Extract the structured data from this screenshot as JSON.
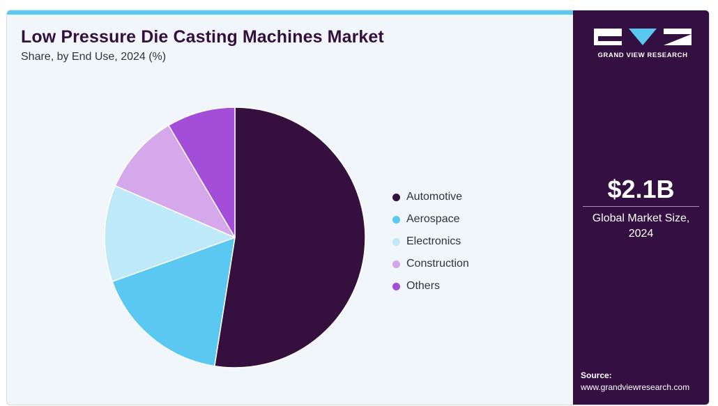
{
  "header": {
    "title": "Low Pressure Die Casting Machines Market",
    "subtitle": "Share, by End Use, 2024 (%)"
  },
  "chart_data": {
    "type": "pie",
    "title": "Low Pressure Die Casting Machines Market",
    "subtitle": "Share, by End Use, 2024 (%)",
    "categories": [
      "Automotive",
      "Aerospace",
      "Electronics",
      "Construction",
      "Others"
    ],
    "values": [
      52.5,
      17.0,
      12.0,
      10.0,
      8.5
    ],
    "colors": [
      "#35103f",
      "#5ac8f0",
      "#bde9f8",
      "#d4a8ea",
      "#a24ed8"
    ],
    "legend_position": "right",
    "start_angle": "12 o'clock",
    "direction": "clockwise"
  },
  "sidebar": {
    "logo_text": "GRAND VIEW RESEARCH",
    "market_size": "$2.1B",
    "market_size_label": "Global Market Size, 2024",
    "source_label": "Source:",
    "source_url": "www.grandviewresearch.com"
  },
  "colors": {
    "sidebar_bg": "#341042",
    "accent_bar": "#5ac8f0",
    "title": "#35103f",
    "card_bg": "#f1f6fa"
  }
}
